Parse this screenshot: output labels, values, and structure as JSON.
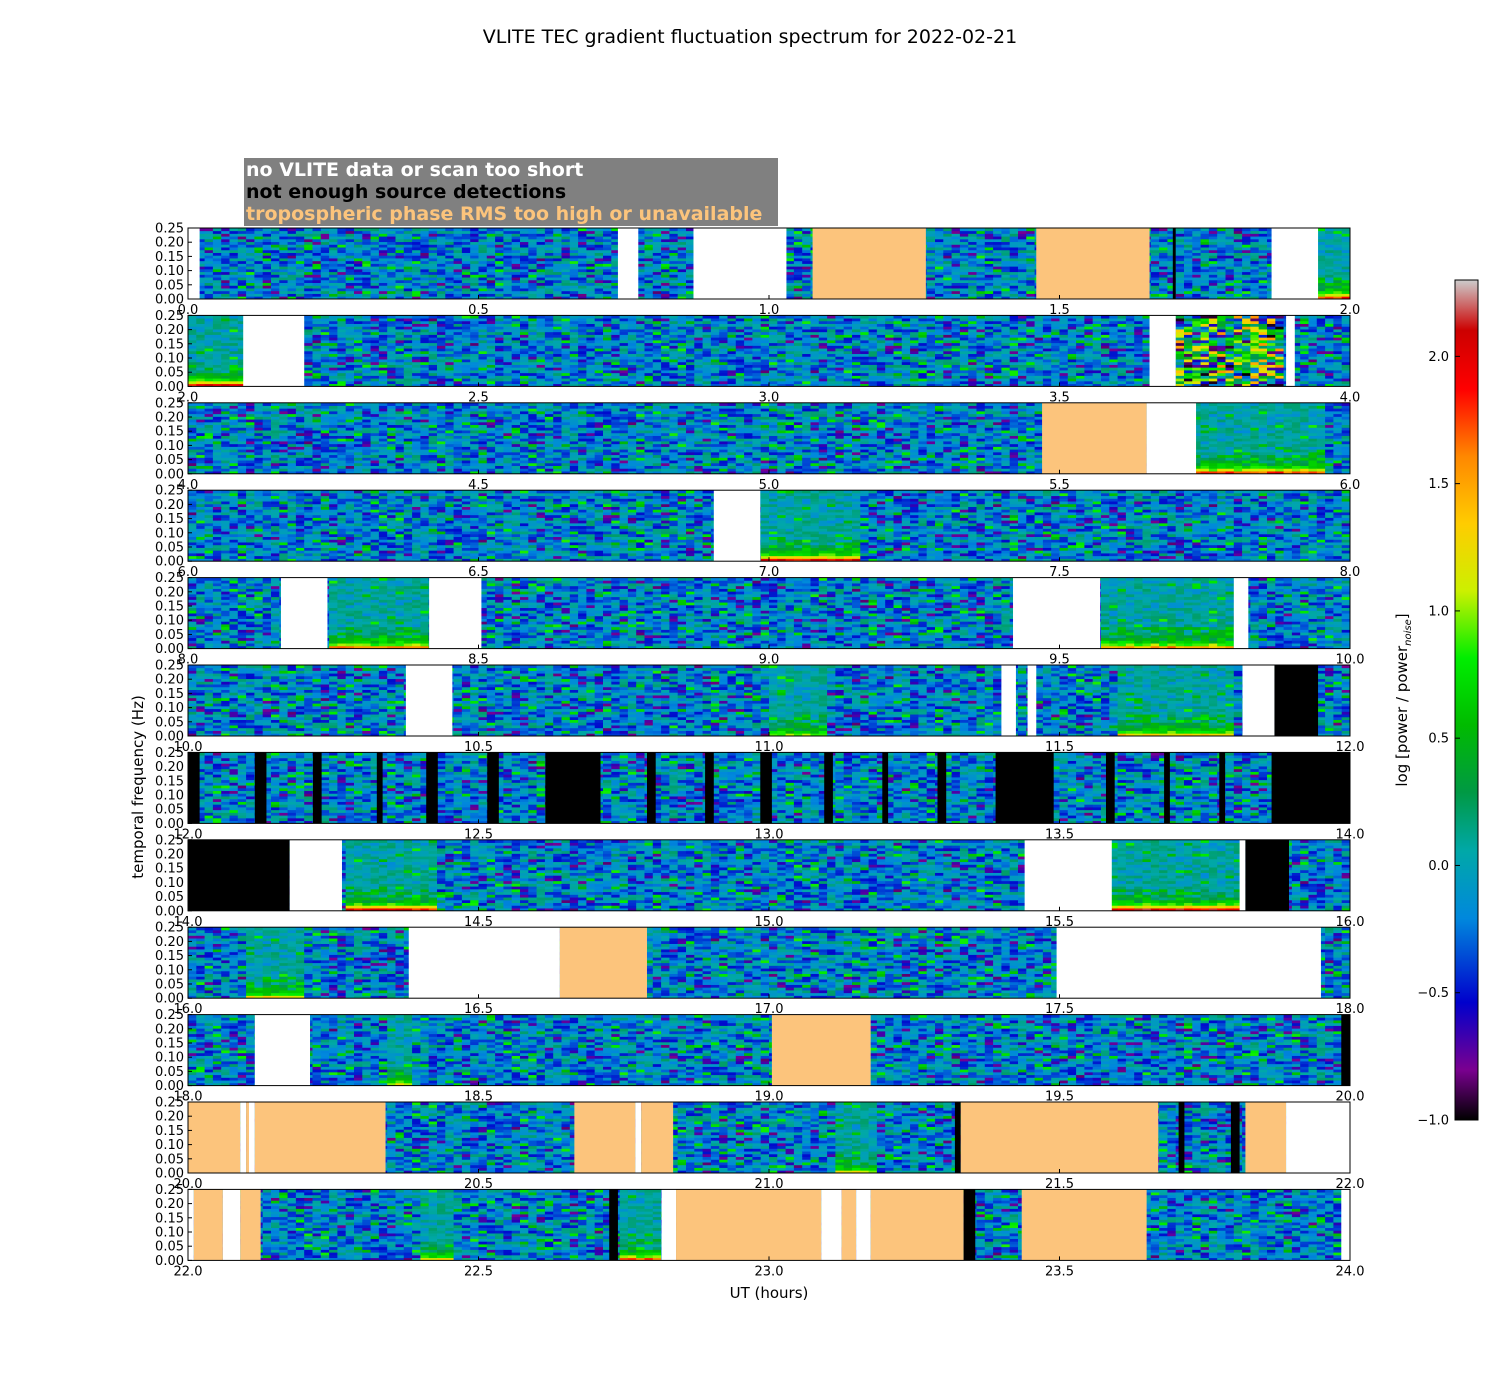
{
  "chart_data": {
    "type": "heatmap",
    "title": "VLITE TEC gradient fluctuation spectrum for 2022-02-21",
    "xlabel": "UT (hours)",
    "ylabel": "temporal frequency (Hz)",
    "ylim": [
      0,
      0.25
    ],
    "yticks": [
      "0.00",
      "0.05",
      "0.10",
      "0.15",
      "0.20",
      "0.25"
    ],
    "colorbar": {
      "label": "log [power / power",
      "label_sub": "noise",
      "label_end": "]",
      "range": [
        -1.0,
        2.3
      ],
      "ticks": [
        {
          "value": -1.0,
          "label": "−1.0"
        },
        {
          "value": -0.5,
          "label": "−0.5"
        },
        {
          "value": 0.0,
          "label": "0.0"
        },
        {
          "value": 0.5,
          "label": "0.5"
        },
        {
          "value": 1.0,
          "label": "1.0"
        },
        {
          "value": 1.5,
          "label": "1.5"
        },
        {
          "value": 2.0,
          "label": "2.0"
        }
      ],
      "colormap": "nipy_spectral"
    },
    "legend": {
      "placement": "top-left",
      "background": "#808080",
      "entries": [
        {
          "label": "no VLITE data or scan too short",
          "color": "#ffffff"
        },
        {
          "label": "not enough source detections",
          "color": "#000000"
        },
        {
          "label": "tropospheric phase RMS too high or unavailable",
          "color": "#fcc47c"
        }
      ]
    },
    "flag_colors": {
      "nodata": "#ffffff",
      "nodet": "#000000",
      "tropo": "#fcc47c"
    },
    "panels": [
      {
        "xlim": [
          0,
          2
        ],
        "xticks": [
          "0.0",
          "0.5",
          "1.0",
          "1.5",
          "2.0"
        ],
        "flags": [
          [
            0,
            0.02,
            "nodata"
          ],
          [
            0.74,
            0.775,
            "nodata"
          ],
          [
            0.87,
            1.03,
            "nodata"
          ],
          [
            1.075,
            1.27,
            "tropo"
          ],
          [
            1.46,
            1.655,
            "tropo"
          ],
          [
            1.695,
            1.7,
            "nodet"
          ],
          [
            1.865,
            1.945,
            "nodata"
          ]
        ],
        "events": [
          [
            1.945,
            2.0,
            1.8
          ]
        ]
      },
      {
        "xlim": [
          2,
          4
        ],
        "xticks": [
          "2.0",
          "2.5",
          "3.0",
          "3.5",
          "4.0"
        ],
        "flags": [
          [
            2.095,
            2.2,
            "nodata"
          ],
          [
            3.655,
            3.7,
            "nodata"
          ],
          [
            3.89,
            3.905,
            "nodata"
          ]
        ],
        "events": [
          [
            2.0,
            2.095,
            1.9
          ]
        ],
        "noisy": [
          [
            3.7,
            3.89
          ]
        ]
      },
      {
        "xlim": [
          4,
          6
        ],
        "xticks": [
          "4.0",
          "4.5",
          "5.0",
          "5.5",
          "6.0"
        ],
        "flags": [
          [
            5.47,
            5.65,
            "tropo"
          ],
          [
            5.65,
            5.735,
            "nodata"
          ]
        ],
        "events": [
          [
            5.735,
            5.95,
            1.7
          ]
        ]
      },
      {
        "xlim": [
          6,
          8
        ],
        "xticks": [
          "6.0",
          "6.5",
          "7.0",
          "7.5",
          "8.0"
        ],
        "flags": [
          [
            6.905,
            6.985,
            "nodata"
          ]
        ],
        "events": [
          [
            6.985,
            7.16,
            1.9
          ]
        ]
      },
      {
        "xlim": [
          8,
          10
        ],
        "xticks": [
          "8.0",
          "8.5",
          "9.0",
          "9.5",
          "10.0"
        ],
        "flags": [
          [
            8.16,
            8.24,
            "nodata"
          ],
          [
            8.415,
            8.505,
            "nodata"
          ],
          [
            9.42,
            9.57,
            "nodata"
          ],
          [
            9.8,
            9.825,
            "nodata"
          ]
        ],
        "events": [
          [
            8.24,
            8.415,
            1.5
          ],
          [
            9.57,
            9.8,
            1.5
          ]
        ]
      },
      {
        "xlim": [
          10,
          12
        ],
        "xticks": [
          "10.0",
          "10.5",
          "11.0",
          "11.5",
          "12.0"
        ],
        "flags": [
          [
            10.375,
            10.455,
            "nodata"
          ],
          [
            11.4,
            11.425,
            "nodata"
          ],
          [
            11.445,
            11.46,
            "nodata"
          ],
          [
            11.815,
            11.87,
            "nodata"
          ],
          [
            11.87,
            11.945,
            "nodet"
          ]
        ],
        "events": [
          [
            11.0,
            11.1,
            1.0
          ],
          [
            11.6,
            11.8,
            1.3
          ]
        ]
      },
      {
        "xlim": [
          12,
          14
        ],
        "xticks": [
          "12.0",
          "12.5",
          "13.0",
          "13.5",
          "14.0"
        ],
        "flags": [
          [
            12.0,
            12.02,
            "nodet"
          ],
          [
            12.115,
            12.135,
            "nodet"
          ],
          [
            12.215,
            12.23,
            "nodet"
          ],
          [
            12.325,
            12.335,
            "nodet"
          ],
          [
            12.41,
            12.43,
            "nodet"
          ],
          [
            12.515,
            12.535,
            "nodet"
          ],
          [
            12.615,
            12.71,
            "nodet"
          ],
          [
            12.79,
            12.805,
            "nodet"
          ],
          [
            12.89,
            12.905,
            "nodet"
          ],
          [
            12.985,
            13.005,
            "nodet"
          ],
          [
            13.095,
            13.11,
            "nodet"
          ],
          [
            13.195,
            13.205,
            "nodet"
          ],
          [
            13.29,
            13.305,
            "nodet"
          ],
          [
            13.39,
            13.49,
            "nodet"
          ],
          [
            13.58,
            13.595,
            "nodet"
          ],
          [
            13.68,
            13.69,
            "nodet"
          ],
          [
            13.775,
            13.785,
            "nodet"
          ],
          [
            13.865,
            14.0,
            "nodet"
          ]
        ],
        "events": []
      },
      {
        "xlim": [
          14,
          16
        ],
        "xticks": [
          "14.0",
          "14.5",
          "15.0",
          "15.5",
          "16.0"
        ],
        "flags": [
          [
            14.0,
            14.175,
            "nodet"
          ],
          [
            14.175,
            14.265,
            "nodata"
          ],
          [
            15.44,
            15.59,
            "nodata"
          ],
          [
            15.81,
            15.82,
            "nodata"
          ],
          [
            15.82,
            15.895,
            "nodet"
          ]
        ],
        "events": [
          [
            14.265,
            14.43,
            1.9
          ],
          [
            15.59,
            15.81,
            2.0
          ]
        ]
      },
      {
        "xlim": [
          16,
          18
        ],
        "xticks": [
          "16.0",
          "16.5",
          "17.0",
          "17.5",
          "18.0"
        ],
        "flags": [
          [
            16.38,
            16.64,
            "nodata"
          ],
          [
            16.64,
            16.79,
            "tropo"
          ],
          [
            17.495,
            17.95,
            "nodata"
          ]
        ],
        "events": [
          [
            16.1,
            16.2,
            1.2
          ]
        ]
      },
      {
        "xlim": [
          18,
          20
        ],
        "xticks": [
          "18.0",
          "18.5",
          "19.0",
          "19.5",
          "20.0"
        ],
        "flags": [
          [
            18.115,
            18.21,
            "nodata"
          ],
          [
            19.005,
            19.175,
            "tropo"
          ],
          [
            19.985,
            20.0,
            "nodet"
          ]
        ],
        "events": [
          [
            18.35,
            18.39,
            1.2
          ]
        ]
      },
      {
        "xlim": [
          20,
          22
        ],
        "xticks": [
          "20.0",
          "20.5",
          "21.0",
          "21.5",
          "22.0"
        ],
        "flags": [
          [
            20.0,
            20.09,
            "tropo"
          ],
          [
            20.09,
            20.1,
            "nodata"
          ],
          [
            20.1,
            20.105,
            "tropo"
          ],
          [
            20.105,
            20.115,
            "nodata"
          ],
          [
            20.115,
            20.34,
            "tropo"
          ],
          [
            20.665,
            20.77,
            "tropo"
          ],
          [
            20.77,
            20.78,
            "nodata"
          ],
          [
            20.78,
            20.835,
            "tropo"
          ],
          [
            21.32,
            21.33,
            "nodet"
          ],
          [
            21.33,
            21.67,
            "tropo"
          ],
          [
            21.705,
            21.715,
            "nodet"
          ],
          [
            21.795,
            21.81,
            "nodet"
          ],
          [
            21.82,
            21.89,
            "tropo"
          ],
          [
            21.89,
            22.0,
            "nodata"
          ]
        ],
        "events": [
          [
            21.12,
            21.18,
            1.1
          ]
        ]
      },
      {
        "xlim": [
          22,
          24
        ],
        "xticks": [
          "22.0",
          "22.5",
          "23.0",
          "23.5",
          "24.0"
        ],
        "flags": [
          [
            22.0,
            22.01,
            "nodata"
          ],
          [
            22.01,
            22.06,
            "tropo"
          ],
          [
            22.06,
            22.09,
            "nodata"
          ],
          [
            22.09,
            22.125,
            "tropo"
          ],
          [
            22.725,
            22.74,
            "nodet"
          ],
          [
            22.815,
            22.84,
            "nodata"
          ],
          [
            22.84,
            23.09,
            "tropo"
          ],
          [
            23.09,
            23.125,
            "nodata"
          ],
          [
            23.125,
            23.15,
            "tropo"
          ],
          [
            23.15,
            23.175,
            "nodata"
          ],
          [
            23.175,
            23.335,
            "tropo"
          ],
          [
            23.335,
            23.355,
            "nodet"
          ],
          [
            23.435,
            23.65,
            "tropo"
          ],
          [
            23.985,
            24.0,
            "nodata"
          ]
        ],
        "events": [
          [
            22.74,
            22.815,
            1.6
          ],
          [
            22.4,
            22.46,
            1.2
          ]
        ]
      }
    ]
  }
}
